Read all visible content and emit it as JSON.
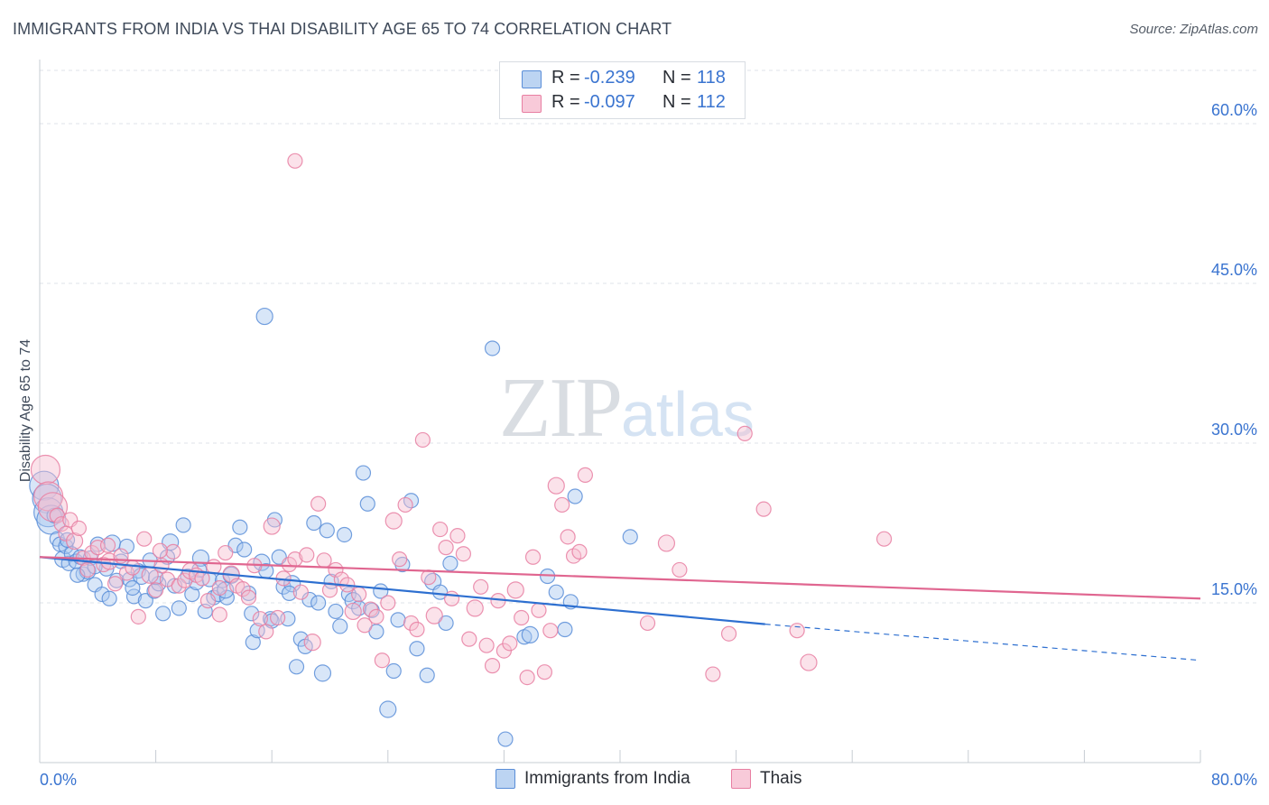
{
  "header": {
    "title": "IMMIGRANTS FROM INDIA VS THAI DISABILITY AGE 65 TO 74 CORRELATION CHART",
    "source": "Source: ZipAtlas.com"
  },
  "watermark": {
    "zip": "ZIP",
    "atlas": "atlas"
  },
  "legend": {
    "rows": [
      {
        "r_label": "R =",
        "r_value": "-0.239",
        "n_label": "N =",
        "n_value": "118"
      },
      {
        "r_label": "R =",
        "r_value": "-0.097",
        "n_label": "N =",
        "n_value": "112"
      }
    ]
  },
  "bottom_legend": {
    "india": "Immigrants from India",
    "thai": "Thais"
  },
  "colors": {
    "india_fill": "#a8c8f0",
    "india_stroke": "#5a8ed8",
    "india_line": "#2d6fd0",
    "thai_fill": "#f6bfd0",
    "thai_stroke": "#e87fa2",
    "thai_line": "#e06690",
    "tick_label": "#3a74d0",
    "grid": "#dfe3e8"
  },
  "chart_data": {
    "type": "scatter",
    "title": "IMMIGRANTS FROM INDIA VS THAI DISABILITY AGE 65 TO 74 CORRELATION CHART",
    "xlabel": "",
    "ylabel": "Disability Age 65 to 74",
    "xlim": [
      0,
      80
    ],
    "ylim": [
      0,
      65
    ],
    "x_tick_labels": [
      "0.0%",
      "80.0%"
    ],
    "y_ticks": [
      15,
      30,
      45,
      60
    ],
    "y_tick_labels": [
      "15.0%",
      "30.0%",
      "45.0%",
      "60.0%"
    ],
    "grid": true,
    "legend_position": "top-center",
    "series": [
      {
        "name": "Immigrants from India",
        "R": -0.239,
        "N": 118,
        "trend": {
          "x": [
            0,
            50
          ],
          "y": [
            19.3,
            13.0
          ],
          "dashed_to": [
            80,
            9.6
          ]
        },
        "points": [
          [
            0.3,
            26.0
          ],
          [
            0.5,
            24.8
          ],
          [
            0.6,
            23.5
          ],
          [
            0.8,
            22.8
          ],
          [
            1.0,
            23.2
          ],
          [
            1.2,
            21.0
          ],
          [
            1.4,
            20.5
          ],
          [
            1.6,
            19.1
          ],
          [
            1.8,
            20.3
          ],
          [
            2.0,
            18.7
          ],
          [
            2.2,
            19.6
          ],
          [
            2.5,
            18.9
          ],
          [
            2.8,
            19.3
          ],
          [
            3.0,
            17.7
          ],
          [
            3.3,
            18.0
          ],
          [
            3.5,
            19.2
          ],
          [
            3.8,
            16.7
          ],
          [
            4.0,
            20.5
          ],
          [
            4.3,
            15.8
          ],
          [
            4.6,
            18.2
          ],
          [
            4.8,
            15.4
          ],
          [
            5.0,
            20.6
          ],
          [
            5.3,
            17.1
          ],
          [
            5.6,
            18.9
          ],
          [
            6.0,
            20.3
          ],
          [
            6.2,
            17.2
          ],
          [
            6.5,
            15.6
          ],
          [
            6.8,
            18.0
          ],
          [
            7.0,
            17.5
          ],
          [
            7.3,
            15.2
          ],
          [
            7.6,
            19.0
          ],
          [
            7.9,
            16.1
          ],
          [
            8.2,
            16.8
          ],
          [
            8.5,
            14.0
          ],
          [
            8.8,
            19.3
          ],
          [
            9.0,
            20.7
          ],
          [
            9.3,
            16.6
          ],
          [
            9.6,
            14.5
          ],
          [
            9.9,
            22.3
          ],
          [
            10.2,
            17.5
          ],
          [
            10.5,
            15.8
          ],
          [
            10.8,
            16.9
          ],
          [
            11.1,
            19.2
          ],
          [
            11.4,
            14.2
          ],
          [
            11.7,
            17.2
          ],
          [
            12.0,
            15.5
          ],
          [
            12.3,
            15.8
          ],
          [
            12.6,
            17.1
          ],
          [
            12.9,
            15.5
          ],
          [
            13.2,
            17.6
          ],
          [
            13.5,
            20.4
          ],
          [
            13.8,
            22.1
          ],
          [
            14.1,
            20.0
          ],
          [
            14.4,
            15.9
          ],
          [
            14.7,
            11.3
          ],
          [
            15.0,
            12.4
          ],
          [
            15.3,
            18.8
          ],
          [
            15.6,
            18.0
          ],
          [
            15.9,
            13.5
          ],
          [
            16.2,
            22.8
          ],
          [
            16.5,
            19.3
          ],
          [
            16.8,
            16.5
          ],
          [
            17.1,
            13.5
          ],
          [
            17.4,
            16.8
          ],
          [
            17.7,
            9.0
          ],
          [
            18.0,
            11.6
          ],
          [
            18.3,
            10.9
          ],
          [
            18.6,
            15.3
          ],
          [
            18.9,
            22.5
          ],
          [
            19.2,
            15.0
          ],
          [
            19.5,
            8.4
          ],
          [
            19.8,
            21.8
          ],
          [
            20.1,
            17.0
          ],
          [
            20.4,
            14.2
          ],
          [
            20.7,
            12.8
          ],
          [
            21.0,
            21.4
          ],
          [
            21.3,
            15.8
          ],
          [
            21.6,
            15.2
          ],
          [
            22.0,
            14.5
          ],
          [
            22.3,
            27.2
          ],
          [
            22.6,
            24.3
          ],
          [
            22.9,
            14.3
          ],
          [
            23.2,
            12.3
          ],
          [
            23.5,
            16.1
          ],
          [
            24.0,
            5.0
          ],
          [
            24.4,
            8.6
          ],
          [
            24.7,
            13.4
          ],
          [
            25.0,
            18.6
          ],
          [
            25.6,
            24.6
          ],
          [
            26.0,
            10.7
          ],
          [
            26.7,
            8.2
          ],
          [
            27.1,
            17.0
          ],
          [
            27.6,
            16.0
          ],
          [
            28.0,
            13.1
          ],
          [
            28.3,
            18.7
          ],
          [
            31.2,
            38.9
          ],
          [
            32.1,
            2.2
          ],
          [
            33.4,
            11.8
          ],
          [
            33.8,
            12.0
          ],
          [
            35.0,
            17.5
          ],
          [
            35.6,
            16.0
          ],
          [
            36.2,
            12.5
          ],
          [
            36.6,
            15.1
          ],
          [
            36.9,
            25.0
          ],
          [
            40.7,
            21.2
          ],
          [
            15.5,
            41.9
          ],
          [
            3.8,
            18.4
          ],
          [
            1.9,
            20.9
          ],
          [
            2.6,
            17.6
          ],
          [
            6.4,
            16.4
          ],
          [
            8.0,
            17.4
          ],
          [
            11.0,
            18.1
          ],
          [
            12.8,
            16.2
          ],
          [
            14.6,
            14.0
          ],
          [
            16.0,
            13.3
          ],
          [
            17.2,
            15.9
          ]
        ]
      },
      {
        "name": "Thais",
        "R": -0.097,
        "N": 112,
        "trend": {
          "x": [
            0,
            80
          ],
          "y": [
            19.3,
            15.4
          ]
        },
        "points": [
          [
            0.4,
            27.5
          ],
          [
            0.6,
            25.0
          ],
          [
            0.9,
            24.0
          ],
          [
            1.2,
            23.2
          ],
          [
            1.5,
            22.4
          ],
          [
            1.8,
            21.5
          ],
          [
            2.1,
            22.8
          ],
          [
            2.4,
            20.8
          ],
          [
            2.7,
            22.0
          ],
          [
            3.0,
            19.2
          ],
          [
            3.3,
            18.1
          ],
          [
            3.6,
            19.7
          ],
          [
            4.0,
            20.2
          ],
          [
            4.4,
            18.6
          ],
          [
            4.8,
            18.9
          ],
          [
            5.2,
            16.8
          ],
          [
            5.6,
            19.4
          ],
          [
            6.0,
            17.8
          ],
          [
            6.4,
            18.3
          ],
          [
            6.8,
            13.7
          ],
          [
            7.2,
            21.0
          ],
          [
            7.6,
            17.6
          ],
          [
            8.0,
            16.2
          ],
          [
            8.4,
            18.5
          ],
          [
            8.8,
            17.2
          ],
          [
            9.2,
            19.8
          ],
          [
            9.6,
            16.6
          ],
          [
            10.0,
            17.1
          ],
          [
            10.4,
            18.0
          ],
          [
            10.8,
            17.6
          ],
          [
            11.2,
            17.3
          ],
          [
            11.6,
            15.2
          ],
          [
            12.0,
            18.4
          ],
          [
            12.4,
            16.4
          ],
          [
            12.8,
            19.7
          ],
          [
            13.2,
            17.7
          ],
          [
            13.6,
            16.6
          ],
          [
            14.0,
            16.3
          ],
          [
            14.4,
            15.5
          ],
          [
            14.8,
            18.5
          ],
          [
            15.2,
            13.5
          ],
          [
            15.6,
            12.3
          ],
          [
            16.0,
            22.2
          ],
          [
            16.4,
            13.6
          ],
          [
            16.8,
            17.3
          ],
          [
            17.2,
            18.6
          ],
          [
            17.6,
            19.1
          ],
          [
            18.0,
            16.0
          ],
          [
            18.4,
            19.5
          ],
          [
            18.8,
            11.3
          ],
          [
            19.2,
            24.3
          ],
          [
            19.6,
            19.0
          ],
          [
            20.0,
            16.2
          ],
          [
            20.4,
            18.1
          ],
          [
            20.8,
            17.2
          ],
          [
            21.2,
            16.7
          ],
          [
            21.6,
            14.2
          ],
          [
            22.0,
            15.8
          ],
          [
            22.4,
            12.9
          ],
          [
            22.8,
            14.4
          ],
          [
            23.2,
            13.7
          ],
          [
            23.6,
            9.6
          ],
          [
            24.0,
            15.0
          ],
          [
            24.4,
            22.7
          ],
          [
            24.8,
            19.1
          ],
          [
            25.2,
            24.2
          ],
          [
            25.6,
            13.1
          ],
          [
            26.0,
            12.5
          ],
          [
            26.4,
            30.3
          ],
          [
            26.8,
            17.4
          ],
          [
            27.2,
            13.8
          ],
          [
            27.6,
            21.9
          ],
          [
            28.0,
            20.2
          ],
          [
            28.4,
            15.4
          ],
          [
            28.8,
            21.3
          ],
          [
            29.2,
            19.6
          ],
          [
            29.6,
            11.6
          ],
          [
            30.0,
            14.5
          ],
          [
            30.4,
            16.5
          ],
          [
            30.8,
            11.0
          ],
          [
            31.2,
            9.1
          ],
          [
            31.6,
            15.2
          ],
          [
            32.0,
            10.5
          ],
          [
            32.4,
            11.2
          ],
          [
            32.8,
            16.2
          ],
          [
            33.2,
            13.6
          ],
          [
            33.6,
            8.0
          ],
          [
            34.0,
            19.3
          ],
          [
            34.4,
            14.3
          ],
          [
            34.8,
            8.5
          ],
          [
            35.2,
            12.4
          ],
          [
            35.6,
            26.0
          ],
          [
            36.0,
            24.2
          ],
          [
            36.4,
            21.2
          ],
          [
            36.8,
            19.4
          ],
          [
            37.2,
            19.8
          ],
          [
            37.6,
            27.0
          ],
          [
            41.9,
            13.1
          ],
          [
            43.2,
            20.6
          ],
          [
            44.1,
            18.1
          ],
          [
            46.4,
            8.3
          ],
          [
            47.5,
            12.1
          ],
          [
            48.6,
            30.9
          ],
          [
            49.9,
            23.8
          ],
          [
            52.2,
            12.4
          ],
          [
            53.0,
            9.4
          ],
          [
            58.2,
            21.0
          ],
          [
            17.6,
            56.5
          ],
          [
            4.7,
            20.4
          ],
          [
            8.3,
            19.9
          ],
          [
            12.4,
            13.9
          ]
        ]
      }
    ]
  }
}
